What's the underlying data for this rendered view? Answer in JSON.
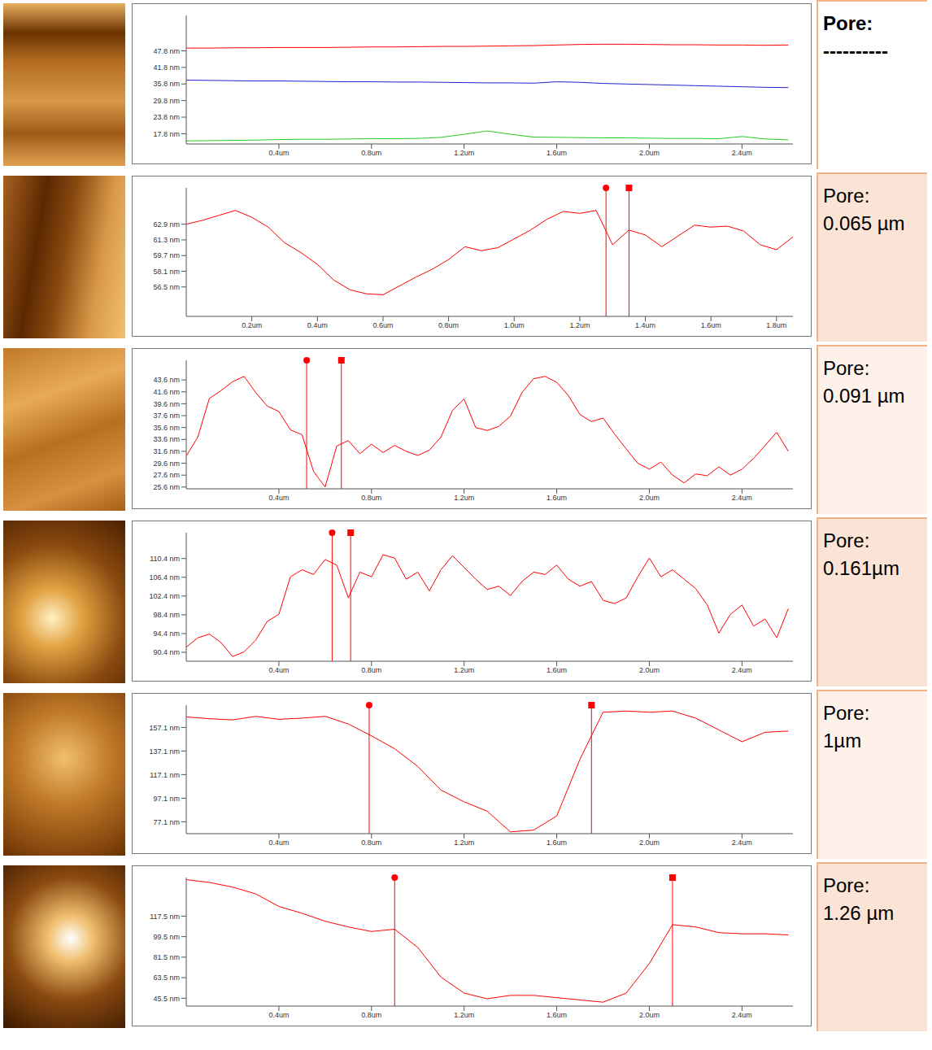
{
  "chart_data": [
    {
      "type": "line",
      "annotations": [
        "Pore:",
        "----------"
      ],
      "x": [
        0,
        0.1,
        0.2,
        0.3,
        0.4,
        0.5,
        0.6,
        0.7,
        0.8,
        0.9,
        1.0,
        1.1,
        1.2,
        1.3,
        1.4,
        1.5,
        1.6,
        1.7,
        1.8,
        1.9,
        2.0,
        2.1,
        2.2,
        2.3,
        2.4,
        2.5,
        2.6
      ],
      "series": [
        {
          "color": "#ff0000",
          "values": [
            48.8,
            48.8,
            48.9,
            48.9,
            49,
            49,
            49,
            49.1,
            49.2,
            49.2,
            49.3,
            49.4,
            49.4,
            49.5,
            49.6,
            49.7,
            49.9,
            50.1,
            50.2,
            50.2,
            50.1,
            50,
            50,
            49.9,
            49.9,
            49.8,
            49.9
          ]
        },
        {
          "color": "#2020cc",
          "values": [
            37.2,
            37.1,
            37,
            36.9,
            36.9,
            36.8,
            36.7,
            36.6,
            36.6,
            36.5,
            36.5,
            36.4,
            36.3,
            36.2,
            36.2,
            36.1,
            36.6,
            36.4,
            36.0,
            35.8,
            35.6,
            35.4,
            35.2,
            35.0,
            34.8,
            34.6,
            34.5
          ]
        },
        {
          "color": "#22cc22",
          "values": [
            15.2,
            15.3,
            15.4,
            15.5,
            15.7,
            15.8,
            15.8,
            15.9,
            16,
            16,
            16.1,
            16.5,
            17.6,
            18.8,
            17.6,
            16.6,
            16.5,
            16.4,
            16.3,
            16.3,
            16.2,
            16.1,
            16.1,
            16,
            16.8,
            15.9,
            15.6
          ]
        }
      ],
      "xlim": [
        0,
        2.62
      ],
      "xticks": [
        {
          "value": 0.4,
          "label": "0.4um"
        },
        {
          "value": 0.8,
          "label": "0.8um"
        },
        {
          "value": 1.2,
          "label": "1.2um"
        },
        {
          "value": 1.6,
          "label": "1.6um"
        },
        {
          "value": 2.0,
          "label": "2.0um"
        },
        {
          "value": 2.4,
          "label": "2.4um"
        }
      ],
      "ylim": [
        14.1,
        60.6
      ],
      "yticks": [
        {
          "value": 17.8,
          "label": "17.8 nm"
        },
        {
          "value": 23.8,
          "label": "23.8 nm"
        },
        {
          "value": 29.8,
          "label": "29.8 nm"
        },
        {
          "value": 35.8,
          "label": "35.8 nm"
        },
        {
          "value": 41.8,
          "label": "41.8 nm"
        },
        {
          "value": 47.8,
          "label": "47.8 nm"
        }
      ],
      "cursors": []
    },
    {
      "type": "line",
      "annotations": [
        "Pore:",
        "0.065 µm"
      ],
      "x": [
        0,
        0.05,
        0.1,
        0.15,
        0.2,
        0.25,
        0.3,
        0.35,
        0.4,
        0.45,
        0.5,
        0.55,
        0.6,
        0.65,
        0.7,
        0.75,
        0.8,
        0.85,
        0.9,
        0.95,
        1.0,
        1.05,
        1.1,
        1.15,
        1.2,
        1.25,
        1.3,
        1.35,
        1.4,
        1.45,
        1.5,
        1.55,
        1.6,
        1.65,
        1.7,
        1.75,
        1.8,
        1.85
      ],
      "series": [
        {
          "color": "#ff0000",
          "values": [
            62.9,
            63.3,
            63.8,
            64.3,
            63.6,
            62.6,
            61.0,
            60.0,
            58.8,
            57.2,
            56.2,
            55.8,
            55.7,
            56.6,
            57.5,
            58.3,
            59.3,
            60.6,
            60.2,
            60.5,
            61.4,
            62.3,
            63.4,
            64.2,
            64.0,
            64.3,
            60.8,
            62.3,
            61.8,
            60.6,
            61.7,
            62.8,
            62.6,
            62.7,
            62.2,
            60.8,
            60.3,
            61.6
          ]
        }
      ],
      "xlim": [
        0,
        1.85
      ],
      "xticks": [
        {
          "value": 0.2,
          "label": "0.2um"
        },
        {
          "value": 0.4,
          "label": "0.4um"
        },
        {
          "value": 0.6,
          "label": "0.6um"
        },
        {
          "value": 0.8,
          "label": "0.8um"
        },
        {
          "value": 1.0,
          "label": "1.0um"
        },
        {
          "value": 1.2,
          "label": "1.2um"
        },
        {
          "value": 1.4,
          "label": "1.4um"
        },
        {
          "value": 1.6,
          "label": "1.6um"
        },
        {
          "value": 1.8,
          "label": "1.8um"
        }
      ],
      "ylim": [
        53.5,
        66.6
      ],
      "yticks": [
        {
          "value": 56.5,
          "label": "56.5 nm"
        },
        {
          "value": 58.1,
          "label": "58.1 nm"
        },
        {
          "value": 59.7,
          "label": "59.7 nm"
        },
        {
          "value": 61.3,
          "label": "61.3 nm"
        },
        {
          "value": 62.9,
          "label": "62.9 nm"
        }
      ],
      "cursors": [
        1.28,
        1.35
      ]
    },
    {
      "type": "line",
      "annotations": [
        "Pore:",
        "0.091 µm"
      ],
      "x": [
        0,
        0.05,
        0.1,
        0.15,
        0.2,
        0.25,
        0.3,
        0.35,
        0.4,
        0.45,
        0.5,
        0.55,
        0.6,
        0.65,
        0.7,
        0.75,
        0.8,
        0.85,
        0.9,
        0.95,
        1.0,
        1.05,
        1.1,
        1.15,
        1.2,
        1.25,
        1.3,
        1.35,
        1.4,
        1.45,
        1.5,
        1.55,
        1.6,
        1.65,
        1.7,
        1.75,
        1.8,
        1.85,
        1.9,
        1.95,
        2.0,
        2.05,
        2.1,
        2.15,
        2.2,
        2.25,
        2.3,
        2.35,
        2.4,
        2.45,
        2.5,
        2.55,
        2.6
      ],
      "series": [
        {
          "color": "#ff0000",
          "values": [
            30.8,
            34,
            40.5,
            41.8,
            43.3,
            44.2,
            41.5,
            39.2,
            38.3,
            35.2,
            34.4,
            28.2,
            25.6,
            32.5,
            33.4,
            31.2,
            32.8,
            31.4,
            32.6,
            31.6,
            30.9,
            31.8,
            34.0,
            38.5,
            40.4,
            35.6,
            35.1,
            35.8,
            37.5,
            41.5,
            43.8,
            44.2,
            43.2,
            41.0,
            37.8,
            36.6,
            37.2,
            34.5,
            32.0,
            29.6,
            28.6,
            29.8,
            27.6,
            26.3,
            27.8,
            27.5,
            29.0,
            27.6,
            28.6,
            30.4,
            32.6,
            34.8,
            31.6
          ]
        }
      ],
      "xlim": [
        0,
        2.62
      ],
      "xticks": [
        {
          "value": 0.4,
          "label": "0.4um"
        },
        {
          "value": 0.8,
          "label": "0.8um"
        },
        {
          "value": 1.2,
          "label": "1.2um"
        },
        {
          "value": 1.6,
          "label": "1.6um"
        },
        {
          "value": 2.0,
          "label": "2.0um"
        },
        {
          "value": 2.4,
          "label": "2.4um"
        }
      ],
      "ylim": [
        25.3,
        46.9
      ],
      "yticks": [
        {
          "value": 25.6,
          "label": "25.6 nm"
        },
        {
          "value": 27.6,
          "label": "27.6 nm"
        },
        {
          "value": 29.6,
          "label": "29.6 nm"
        },
        {
          "value": 31.6,
          "label": "31.6 nm"
        },
        {
          "value": 33.6,
          "label": "33.6 nm"
        },
        {
          "value": 35.6,
          "label": "35.6 nm"
        },
        {
          "value": 37.6,
          "label": "37.6 nm"
        },
        {
          "value": 39.6,
          "label": "39.6 nm"
        },
        {
          "value": 41.6,
          "label": "41.6 nm"
        },
        {
          "value": 43.6,
          "label": "43.6 nm"
        }
      ],
      "cursors": [
        0.52,
        0.67
      ]
    },
    {
      "type": "line",
      "annotations": [
        "Pore:",
        "0.161µm"
      ],
      "x": [
        0,
        0.05,
        0.1,
        0.15,
        0.2,
        0.25,
        0.3,
        0.35,
        0.4,
        0.45,
        0.5,
        0.55,
        0.6,
        0.65,
        0.7,
        0.75,
        0.8,
        0.85,
        0.9,
        0.95,
        1.0,
        1.05,
        1.1,
        1.15,
        1.2,
        1.25,
        1.3,
        1.35,
        1.4,
        1.45,
        1.5,
        1.55,
        1.6,
        1.65,
        1.7,
        1.75,
        1.8,
        1.85,
        1.9,
        1.95,
        2.0,
        2.05,
        2.1,
        2.15,
        2.2,
        2.25,
        2.3,
        2.35,
        2.4,
        2.45,
        2.5,
        2.55,
        2.6
      ],
      "series": [
        {
          "color": "#ff0000",
          "values": [
            91.5,
            93.5,
            94.3,
            92.5,
            89.5,
            90.5,
            93,
            97,
            98.5,
            106.5,
            108,
            107,
            110.2,
            109,
            102,
            107.5,
            106.5,
            111.2,
            110.5,
            106,
            107.5,
            103.5,
            108,
            111,
            108.5,
            106,
            103.8,
            104.5,
            102.5,
            105.5,
            107.5,
            107,
            109,
            106,
            104.5,
            105.5,
            101.5,
            100.8,
            102,
            106.5,
            110.5,
            106.5,
            108,
            106,
            104,
            100.5,
            94.5,
            98.5,
            100.5,
            96,
            97.5,
            93.5,
            99.7
          ]
        }
      ],
      "xlim": [
        0,
        2.62
      ],
      "xticks": [
        {
          "value": 0.4,
          "label": "0.4um"
        },
        {
          "value": 0.8,
          "label": "0.8um"
        },
        {
          "value": 1.2,
          "label": "1.2um"
        },
        {
          "value": 1.6,
          "label": "1.6um"
        },
        {
          "value": 2.0,
          "label": "2.0um"
        },
        {
          "value": 2.4,
          "label": "2.4um"
        }
      ],
      "ylim": [
        88.5,
        115.9
      ],
      "yticks": [
        {
          "value": 90.4,
          "label": "90.4 nm"
        },
        {
          "value": 94.4,
          "label": "94.4 nm"
        },
        {
          "value": 98.4,
          "label": "98.4 nm"
        },
        {
          "value": 102.4,
          "label": "102.4 nm"
        },
        {
          "value": 106.4,
          "label": "106.4 nm"
        },
        {
          "value": 110.4,
          "label": "110.4 nm"
        }
      ],
      "cursors": [
        0.63,
        0.71
      ]
    },
    {
      "type": "line",
      "annotations": [
        "Pore:",
        "1µm"
      ],
      "x": [
        0,
        0.1,
        0.2,
        0.3,
        0.4,
        0.5,
        0.6,
        0.7,
        0.8,
        0.9,
        1.0,
        1.1,
        1.2,
        1.3,
        1.4,
        1.5,
        1.6,
        1.7,
        1.8,
        1.9,
        2.0,
        2.1,
        2.2,
        2.3,
        2.4,
        2.5,
        2.6
      ],
      "series": [
        {
          "color": "#ff0000",
          "values": [
            166,
            164.5,
            163.5,
            166.5,
            164,
            165,
            166.5,
            160,
            150,
            139,
            124,
            104,
            94,
            86,
            68.5,
            70,
            82,
            130,
            170,
            171,
            170,
            171,
            165,
            155,
            145,
            153,
            154
          ]
        }
      ],
      "xlim": [
        0,
        2.62
      ],
      "xticks": [
        {
          "value": 0.4,
          "label": "0.4um"
        },
        {
          "value": 0.8,
          "label": "0.8um"
        },
        {
          "value": 1.2,
          "label": "1.2um"
        },
        {
          "value": 1.6,
          "label": "1.6um"
        },
        {
          "value": 2.0,
          "label": "2.0um"
        },
        {
          "value": 2.4,
          "label": "2.4um"
        }
      ],
      "ylim": [
        67,
        176
      ],
      "yticks": [
        {
          "value": 77.1,
          "label": "77.1 nm"
        },
        {
          "value": 97.1,
          "label": "97.1 nm"
        },
        {
          "value": 117.1,
          "label": "117.1 nm"
        },
        {
          "value": 137.1,
          "label": "137.1 nm"
        },
        {
          "value": 157.1,
          "label": "157.1 nm"
        }
      ],
      "cursors": [
        0.79,
        1.75
      ]
    },
    {
      "type": "line",
      "annotations": [
        "Pore:",
        "1.26 µm"
      ],
      "x": [
        0,
        0.1,
        0.2,
        0.3,
        0.4,
        0.5,
        0.6,
        0.7,
        0.8,
        0.9,
        1.0,
        1.1,
        1.2,
        1.3,
        1.4,
        1.5,
        1.6,
        1.7,
        1.8,
        1.9,
        2.0,
        2.1,
        2.2,
        2.3,
        2.4,
        2.5,
        2.6
      ],
      "series": [
        {
          "color": "#ff0000",
          "values": [
            149.5,
            147,
            143,
            137,
            126,
            120,
            113,
            108,
            104,
            106,
            90,
            64,
            50,
            45,
            48,
            48,
            46,
            44,
            42,
            50,
            76,
            110,
            108,
            103,
            102,
            102,
            101
          ]
        }
      ],
      "xlim": [
        0,
        2.62
      ],
      "xticks": [
        {
          "value": 0.4,
          "label": "0.4um"
        },
        {
          "value": 0.8,
          "label": "0.8um"
        },
        {
          "value": 1.2,
          "label": "1.2um"
        },
        {
          "value": 1.6,
          "label": "1.6um"
        },
        {
          "value": 2.0,
          "label": "2.0um"
        },
        {
          "value": 2.4,
          "label": "2.4um"
        }
      ],
      "ylim": [
        38.6,
        151.3
      ],
      "yticks": [
        {
          "value": 45.5,
          "label": "45.5 nm"
        },
        {
          "value": 63.5,
          "label": "63.5 nm"
        },
        {
          "value": 81.5,
          "label": "81.5 nm"
        },
        {
          "value": 99.5,
          "label": "99.5 nm"
        },
        {
          "value": 117.5,
          "label": "117.5 nm"
        }
      ],
      "cursors": [
        0.9,
        2.1
      ]
    }
  ]
}
